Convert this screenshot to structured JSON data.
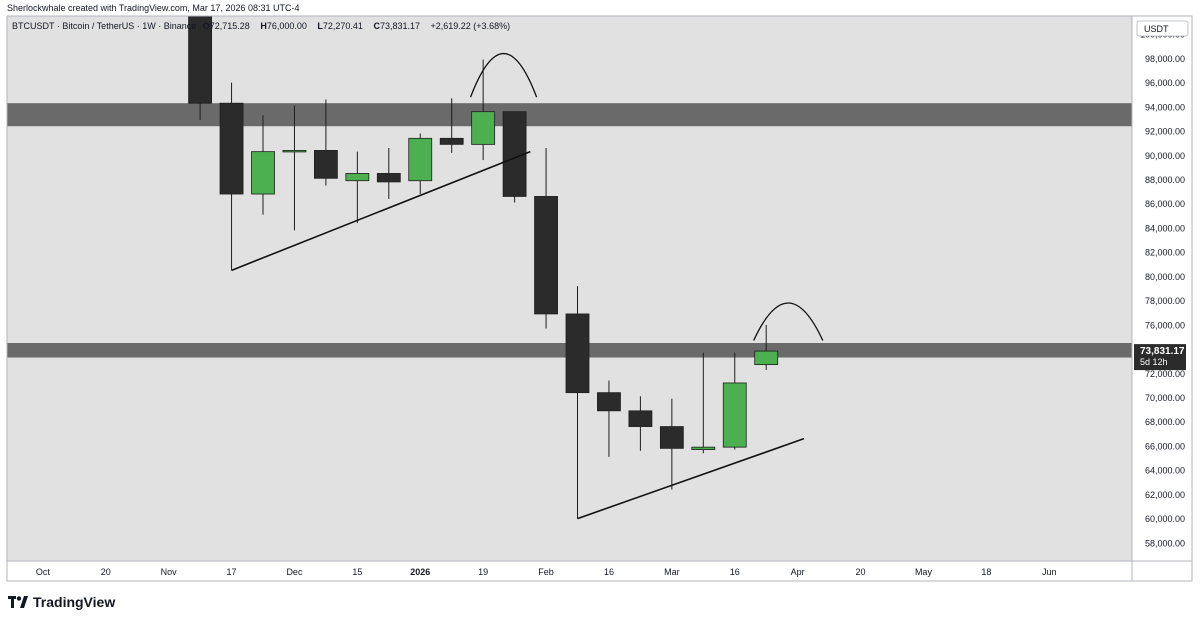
{
  "header": {
    "attribution": "Sherlockwhale created with TradingView.com, Mar 17, 2026 08:31 UTC-4"
  },
  "legend": {
    "symbol": "BTCUSDT · Bitcoin / TetherUS · 1W · Binance",
    "open_label": "O",
    "open": "72,715.28",
    "high_label": "H",
    "high": "76,000.00",
    "low_label": "L",
    "low": "72,270.41",
    "close_label": "C",
    "close": "73,831.17",
    "change": "+2,619.22 (+3.68%)"
  },
  "price_scale": {
    "currency": "USDT",
    "current_price": "73,831.17",
    "countdown": "5d 12h"
  },
  "brand": {
    "name": "TradingView"
  },
  "colors": {
    "up": "#4caf50",
    "down": "#2b2b2b",
    "zone": "#6a6a6a",
    "background": "#e1e1e1"
  },
  "chart_data": {
    "type": "candlestick",
    "ylim": [
      56500,
      101500
    ],
    "y_ticks": [
      58000,
      60000,
      62000,
      64000,
      66000,
      68000,
      70000,
      72000,
      74000,
      76000,
      78000,
      80000,
      82000,
      84000,
      86000,
      88000,
      90000,
      92000,
      94000,
      96000,
      98000,
      100000
    ],
    "y_tick_labels": [
      "58,000.00",
      "60,000.00",
      "62,000.00",
      "64,000.00",
      "66,000.00",
      "68,000.00",
      "70,000.00",
      "72,000.00",
      "74,000.00",
      "76,000.00",
      "78,000.00",
      "80,000.00",
      "82,000.00",
      "84,000.00",
      "86,000.00",
      "88,000.00",
      "90,000.00",
      "92,000.00",
      "94,000.00",
      "96,000.00",
      "98,000.00",
      "100,000.00"
    ],
    "x_ticks": [
      {
        "label": "Oct",
        "week": -7,
        "bold": false
      },
      {
        "label": "20",
        "week": -5,
        "bold": false
      },
      {
        "label": "Nov",
        "week": -3,
        "bold": false
      },
      {
        "label": "17",
        "week": -1,
        "bold": false
      },
      {
        "label": "Dec",
        "week": 1,
        "bold": false
      },
      {
        "label": "15",
        "week": 3,
        "bold": false
      },
      {
        "label": "2026",
        "week": 5,
        "bold": true
      },
      {
        "label": "19",
        "week": 7,
        "bold": false
      },
      {
        "label": "Feb",
        "week": 9,
        "bold": false
      },
      {
        "label": "16",
        "week": 11,
        "bold": false
      },
      {
        "label": "Mar",
        "week": 13,
        "bold": false
      },
      {
        "label": "16",
        "week": 15,
        "bold": false
      },
      {
        "label": "Apr",
        "week": 17,
        "bold": false
      },
      {
        "label": "20",
        "week": 19,
        "bold": false
      },
      {
        "label": "May",
        "week": 21,
        "bold": false
      },
      {
        "label": "18",
        "week": 23,
        "bold": false
      },
      {
        "label": "Jun",
        "week": 25,
        "bold": false
      }
    ],
    "candles": [
      {
        "week": -2,
        "o": 104000,
        "h": 106000,
        "l": 92900,
        "c": 94300
      },
      {
        "week": -1,
        "o": 94300,
        "h": 96000,
        "l": 80500,
        "c": 86800
      },
      {
        "week": 0,
        "o": 86800,
        "h": 93300,
        "l": 85100,
        "c": 90300
      },
      {
        "week": 1,
        "o": 90400,
        "h": 94100,
        "l": 83800,
        "c": 90400
      },
      {
        "week": 2,
        "o": 90400,
        "h": 94600,
        "l": 87500,
        "c": 88100
      },
      {
        "week": 3,
        "o": 87900,
        "h": 90300,
        "l": 84400,
        "c": 88500
      },
      {
        "week": 4,
        "o": 88500,
        "h": 90600,
        "l": 86400,
        "c": 87800
      },
      {
        "week": 5,
        "o": 87900,
        "h": 91800,
        "l": 86800,
        "c": 91400
      },
      {
        "week": 6,
        "o": 91400,
        "h": 94700,
        "l": 90200,
        "c": 90900
      },
      {
        "week": 7,
        "o": 90900,
        "h": 97900,
        "l": 89600,
        "c": 93600
      },
      {
        "week": 8,
        "o": 93600,
        "h": 93600,
        "l": 86100,
        "c": 86600
      },
      {
        "week": 9,
        "o": 86600,
        "h": 90600,
        "l": 75700,
        "c": 76900
      },
      {
        "week": 10,
        "o": 76900,
        "h": 79200,
        "l": 60000,
        "c": 70400
      },
      {
        "week": 11,
        "o": 70400,
        "h": 71400,
        "l": 65100,
        "c": 68900
      },
      {
        "week": 12,
        "o": 68900,
        "h": 70100,
        "l": 65600,
        "c": 67600
      },
      {
        "week": 13,
        "o": 67600,
        "h": 69900,
        "l": 62400,
        "c": 65800
      },
      {
        "week": 14,
        "o": 65700,
        "h": 73700,
        "l": 65400,
        "c": 65900
      },
      {
        "week": 15,
        "o": 65900,
        "h": 73700,
        "l": 65700,
        "c": 71200
      },
      {
        "week": 16,
        "o": 72715.28,
        "h": 76000,
        "l": 72270.41,
        "c": 73831.17
      }
    ],
    "zones": [
      {
        "from": 92400,
        "to": 94300
      },
      {
        "from": 73300,
        "to": 74500
      }
    ],
    "trendlines": [
      {
        "from": {
          "week": -1,
          "price": 80500
        },
        "to": {
          "week": 8.5,
          "price": 90300
        }
      },
      {
        "from": {
          "week": 10,
          "price": 60000
        },
        "to": {
          "week": 17.2,
          "price": 66600
        }
      }
    ],
    "arcs": [
      {
        "from_week": 6.6,
        "to_week": 8.7,
        "base_price": 94800,
        "peak_price": 98400
      },
      {
        "from_week": 15.6,
        "to_week": 17.8,
        "base_price": 74700,
        "peak_price": 77800
      }
    ]
  }
}
